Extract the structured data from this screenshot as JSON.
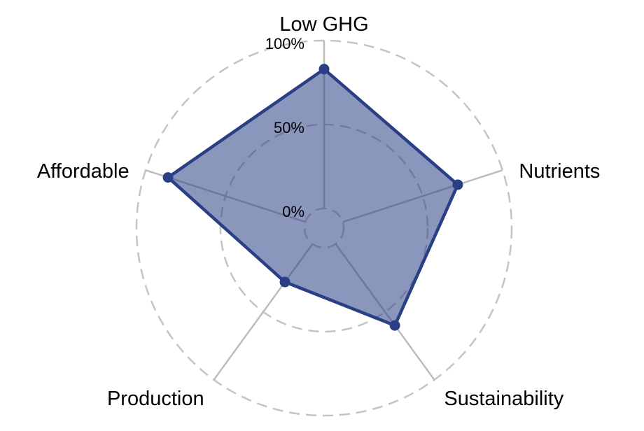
{
  "chart_data": {
    "type": "radar",
    "axes": [
      "Low GHG",
      "Nutrients",
      "Sustainability",
      "Production",
      "Affordable"
    ],
    "values": [
      83,
      72,
      60,
      28,
      86
    ],
    "tick_labels": [
      "0%",
      "50%",
      "100%"
    ],
    "tick_values": [
      0,
      50,
      100
    ],
    "rlim": [
      0,
      100
    ],
    "grid": true,
    "colors": {
      "series": "#2b3f85",
      "grid": "#c4c4c4",
      "spoke": "#bdbdbd"
    }
  }
}
